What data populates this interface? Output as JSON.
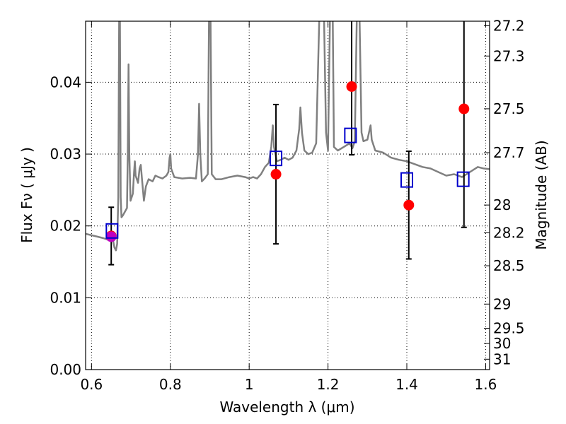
{
  "chart_data": {
    "type": "scatter",
    "xlabel": "Wavelength  λ (μm)",
    "ylabel": "Flux  Fν  ( μJy )",
    "y2label": "Magnitude (AB)",
    "xlim": [
      0.585,
      1.61
    ],
    "ylim": [
      0.0,
      0.0485
    ],
    "grid": true,
    "x_ticks": [
      0.6,
      0.8,
      1.0,
      1.2,
      1.4,
      1.6
    ],
    "x_tick_labels": [
      "0.6",
      "0.8",
      "1",
      "1.2",
      "1.4",
      "1.6"
    ],
    "y_ticks": [
      0.0,
      0.01,
      0.02,
      0.03,
      0.04
    ],
    "y_tick_labels": [
      "0.00",
      "0.01",
      "0.02",
      "0.03",
      "0.04"
    ],
    "mag_ticks": [
      27.2,
      27.3,
      27.5,
      27.7,
      28,
      28.2,
      28.5,
      29,
      29.5,
      30,
      31
    ],
    "mag_tick_labels": [
      "27.2",
      "27.3",
      "27.5",
      "27.7",
      "28",
      "28.2",
      "28.5",
      "29",
      "29.5",
      "30",
      "31"
    ],
    "model_spectrum": {
      "color": "#808080",
      "points": [
        [
          0.585,
          0.0189
        ],
        [
          0.6,
          0.0187
        ],
        [
          0.615,
          0.0185
        ],
        [
          0.63,
          0.0183
        ],
        [
          0.64,
          0.0181
        ],
        [
          0.648,
          0.018
        ],
        [
          0.652,
          0.0183
        ],
        [
          0.655,
          0.0179
        ],
        [
          0.658,
          0.017
        ],
        [
          0.662,
          0.0166
        ],
        [
          0.665,
          0.0175
        ],
        [
          0.668,
          0.024
        ],
        [
          0.67,
          0.049
        ],
        [
          0.672,
          0.049
        ],
        [
          0.674,
          0.024
        ],
        [
          0.676,
          0.0212
        ],
        [
          0.68,
          0.0215
        ],
        [
          0.685,
          0.022
        ],
        [
          0.69,
          0.0225
        ],
        [
          0.692,
          0.03
        ],
        [
          0.694,
          0.0425
        ],
        [
          0.696,
          0.03
        ],
        [
          0.699,
          0.0235
        ],
        [
          0.705,
          0.0245
        ],
        [
          0.708,
          0.0275
        ],
        [
          0.71,
          0.029
        ],
        [
          0.712,
          0.027
        ],
        [
          0.718,
          0.026
        ],
        [
          0.722,
          0.028
        ],
        [
          0.725,
          0.0285
        ],
        [
          0.728,
          0.0265
        ],
        [
          0.733,
          0.0235
        ],
        [
          0.738,
          0.0255
        ],
        [
          0.745,
          0.0265
        ],
        [
          0.755,
          0.0262
        ],
        [
          0.762,
          0.027
        ],
        [
          0.77,
          0.0268
        ],
        [
          0.78,
          0.0266
        ],
        [
          0.79,
          0.027
        ],
        [
          0.795,
          0.0275
        ],
        [
          0.798,
          0.0295
        ],
        [
          0.8,
          0.03
        ],
        [
          0.802,
          0.028
        ],
        [
          0.81,
          0.0268
        ],
        [
          0.83,
          0.0266
        ],
        [
          0.85,
          0.0267
        ],
        [
          0.865,
          0.0266
        ],
        [
          0.87,
          0.03
        ],
        [
          0.873,
          0.037
        ],
        [
          0.876,
          0.03
        ],
        [
          0.88,
          0.0262
        ],
        [
          0.887,
          0.0266
        ],
        [
          0.895,
          0.0272
        ],
        [
          0.898,
          0.049
        ],
        [
          0.902,
          0.049
        ],
        [
          0.905,
          0.0272
        ],
        [
          0.915,
          0.0265
        ],
        [
          0.93,
          0.0265
        ],
        [
          0.95,
          0.0268
        ],
        [
          0.97,
          0.027
        ],
        [
          0.99,
          0.0268
        ],
        [
          1.0,
          0.0266
        ],
        [
          1.01,
          0.0268
        ],
        [
          1.02,
          0.0266
        ],
        [
          1.03,
          0.0272
        ],
        [
          1.04,
          0.0282
        ],
        [
          1.05,
          0.0288
        ],
        [
          1.056,
          0.031
        ],
        [
          1.06,
          0.034
        ],
        [
          1.063,
          0.031
        ],
        [
          1.07,
          0.029
        ],
        [
          1.08,
          0.0292
        ],
        [
          1.09,
          0.0295
        ],
        [
          1.1,
          0.0292
        ],
        [
          1.11,
          0.0295
        ],
        [
          1.12,
          0.0305
        ],
        [
          1.127,
          0.0335
        ],
        [
          1.13,
          0.0365
        ],
        [
          1.134,
          0.033
        ],
        [
          1.14,
          0.0305
        ],
        [
          1.15,
          0.03
        ],
        [
          1.16,
          0.0302
        ],
        [
          1.17,
          0.0315
        ],
        [
          1.178,
          0.049
        ],
        [
          1.19,
          0.049
        ],
        [
          1.195,
          0.033
        ],
        [
          1.2,
          0.0305
        ],
        [
          1.205,
          0.049
        ],
        [
          1.212,
          0.049
        ],
        [
          1.215,
          0.031
        ],
        [
          1.225,
          0.0305
        ],
        [
          1.24,
          0.031
        ],
        [
          1.255,
          0.0315
        ],
        [
          1.262,
          0.0308
        ],
        [
          1.268,
          0.0318
        ],
        [
          1.273,
          0.049
        ],
        [
          1.28,
          0.049
        ],
        [
          1.285,
          0.033
        ],
        [
          1.29,
          0.0318
        ],
        [
          1.3,
          0.032
        ],
        [
          1.308,
          0.034
        ],
        [
          1.311,
          0.032
        ],
        [
          1.32,
          0.0305
        ],
        [
          1.34,
          0.0302
        ],
        [
          1.36,
          0.0295
        ],
        [
          1.38,
          0.0292
        ],
        [
          1.4,
          0.029
        ],
        [
          1.42,
          0.0286
        ],
        [
          1.44,
          0.0282
        ],
        [
          1.46,
          0.028
        ],
        [
          1.48,
          0.0275
        ],
        [
          1.5,
          0.027
        ],
        [
          1.52,
          0.0272
        ],
        [
          1.54,
          0.0268
        ],
        [
          1.56,
          0.0275
        ],
        [
          1.58,
          0.0282
        ],
        [
          1.595,
          0.028
        ],
        [
          1.61,
          0.0279
        ]
      ]
    },
    "observed": {
      "color": "#ff0000",
      "points": [
        {
          "x": 0.65,
          "y": 0.0186,
          "err": 0.004
        },
        {
          "x": 1.068,
          "y": 0.0272,
          "err": 0.0097
        },
        {
          "x": 1.26,
          "y": 0.0394,
          "err": 0.0095
        },
        {
          "x": 1.405,
          "y": 0.0229,
          "err": 0.0075
        },
        {
          "x": 1.545,
          "y": 0.0363,
          "err": 0.0165
        }
      ]
    },
    "special_point": {
      "x": 0.65,
      "y": 0.0185,
      "color": "#c000c0"
    },
    "model_photometry": {
      "color": "#0000cc",
      "points": [
        {
          "x": 0.652,
          "y": 0.0193
        },
        {
          "x": 1.068,
          "y": 0.0294
        },
        {
          "x": 1.257,
          "y": 0.0326
        },
        {
          "x": 1.4,
          "y": 0.0264
        },
        {
          "x": 1.543,
          "y": 0.0265
        }
      ]
    }
  }
}
